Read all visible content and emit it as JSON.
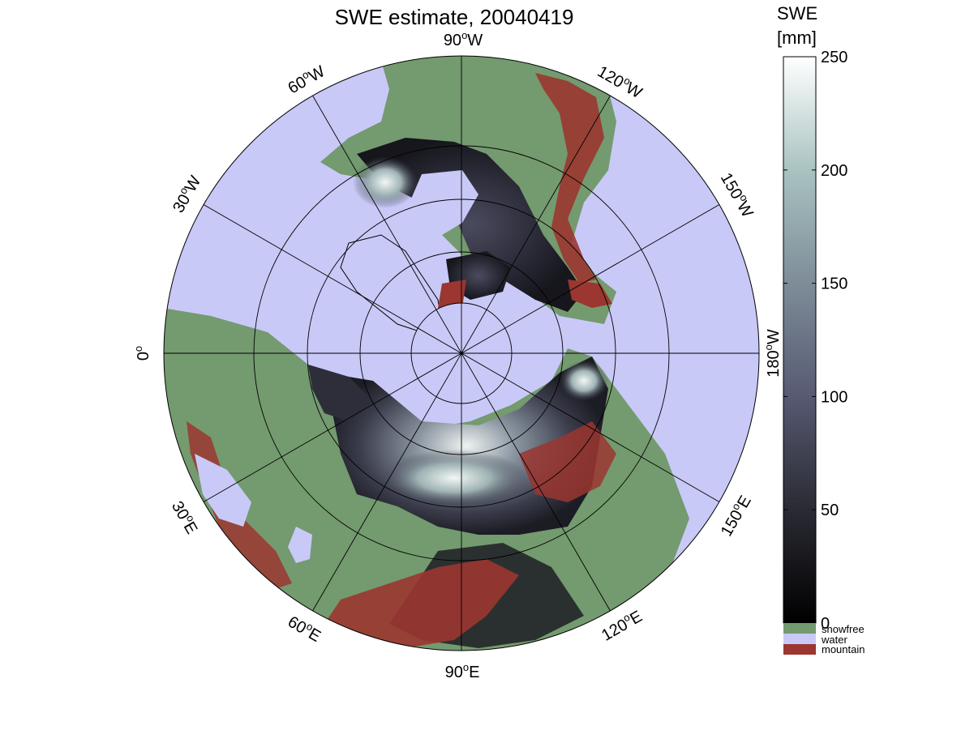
{
  "title": "SWE estimate, 20040419",
  "colorbar": {
    "label_line1": "SWE",
    "label_line2": "[mm]",
    "ticks": [
      {
        "value": 0,
        "text": "0"
      },
      {
        "value": 50,
        "text": "50"
      },
      {
        "value": 100,
        "text": "100"
      },
      {
        "value": 150,
        "text": "150"
      },
      {
        "value": 200,
        "text": "200"
      },
      {
        "value": 250,
        "text": "250"
      }
    ],
    "range": [
      0,
      250
    ],
    "categories": [
      {
        "text": "snowfree",
        "color": "#749a6f"
      },
      {
        "text": "water",
        "color": "#c9c9f8"
      },
      {
        "text": "mountain",
        "color": "#9b3630"
      }
    ]
  },
  "map": {
    "projection": "north polar stereographic",
    "ocean_color": "#c9c9f8",
    "land_color": "#749a6f",
    "mountain_color": "#9b3630",
    "longitude_labels": [
      {
        "deg": "0",
        "suffix": ""
      },
      {
        "deg": "30",
        "suffix": "W"
      },
      {
        "deg": "60",
        "suffix": "W"
      },
      {
        "deg": "90",
        "suffix": "W"
      },
      {
        "deg": "120",
        "suffix": "W"
      },
      {
        "deg": "150",
        "suffix": "W"
      },
      {
        "deg": "180",
        "suffix": "W"
      },
      {
        "deg": "150",
        "suffix": "E"
      },
      {
        "deg": "120",
        "suffix": "E"
      },
      {
        "deg": "90",
        "suffix": "E"
      },
      {
        "deg": "60",
        "suffix": "E"
      },
      {
        "deg": "30",
        "suffix": "E"
      }
    ],
    "degree_symbol": "o"
  }
}
